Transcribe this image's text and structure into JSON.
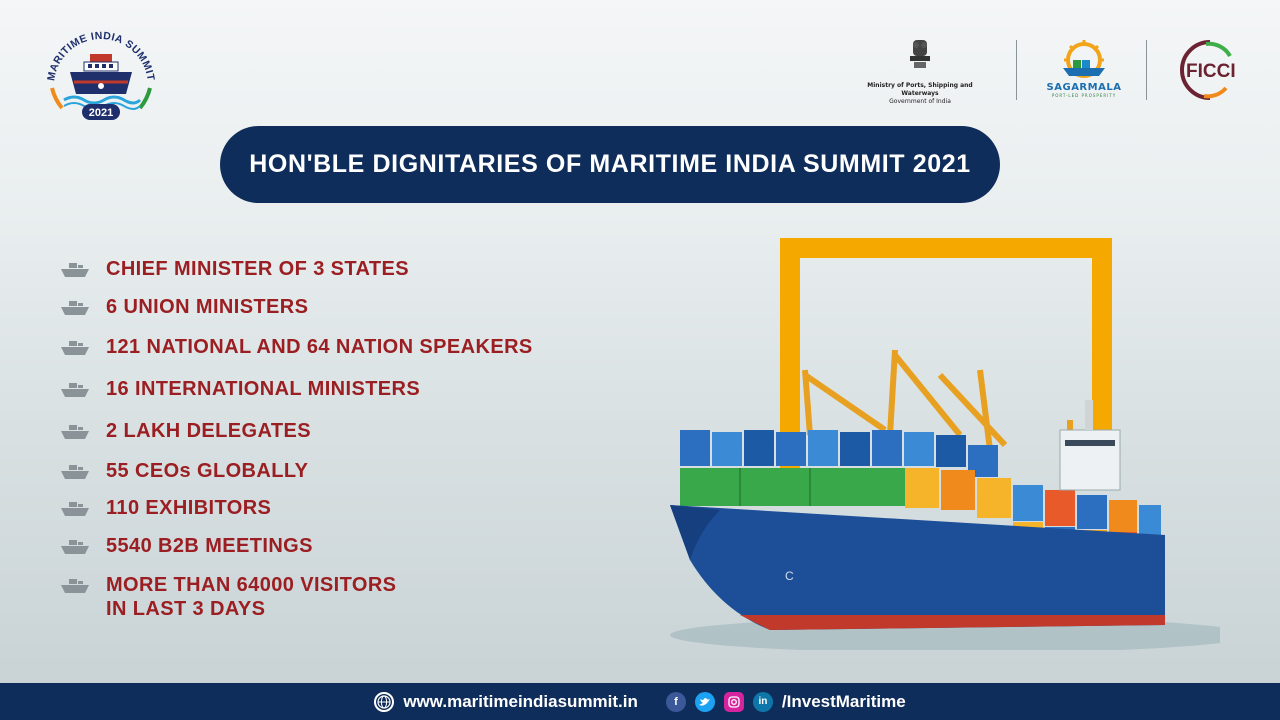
{
  "logo": {
    "arc_text": "MARITIME INDIA SUMMIT",
    "year": "2021"
  },
  "header": {
    "ministry_line1": "Ministry of Ports, Shipping and Waterways",
    "ministry_line2": "Government of India",
    "sagarmala_name": "SAGARMALA",
    "sagarmala_tagline": "PORT-LED PROSPERITY",
    "ficci_name": "FICCI"
  },
  "title": "HON'BLE DIGNITARIES OF MARITIME INDIA SUMMIT 2021",
  "stats": [
    {
      "text": "CHIEF MINISTER OF 3 STATES"
    },
    {
      "text": "6 UNION MINISTERS"
    },
    {
      "text": "121 NATIONAL AND 64 NATION SPEAKERS"
    },
    {
      "text": "16 INTERNATIONAL MINISTERS"
    },
    {
      "text": "2 LAKH DELEGATES"
    },
    {
      "text": "55 CEOs GLOBALLY"
    },
    {
      "text": "110 EXHIBITORS"
    },
    {
      "text": "5540 B2B MEETINGS"
    },
    {
      "text": "MORE THAN 64000 VISITORS"
    },
    {
      "text": "IN LAST 3 DAYS"
    }
  ],
  "footer": {
    "website": "www.maritimeindiasummit.in",
    "handle": "/InvestMaritime",
    "icons": [
      "globe-icon",
      "facebook-icon",
      "twitter-icon",
      "instagram-icon",
      "linkedin-icon"
    ]
  },
  "colors": {
    "navy": "#0f2d5a",
    "stat_red": "#9b1f22",
    "frame_yellow": "#f5a800",
    "hull_blue": "#1d4f99",
    "hull_red": "#c0392b"
  }
}
